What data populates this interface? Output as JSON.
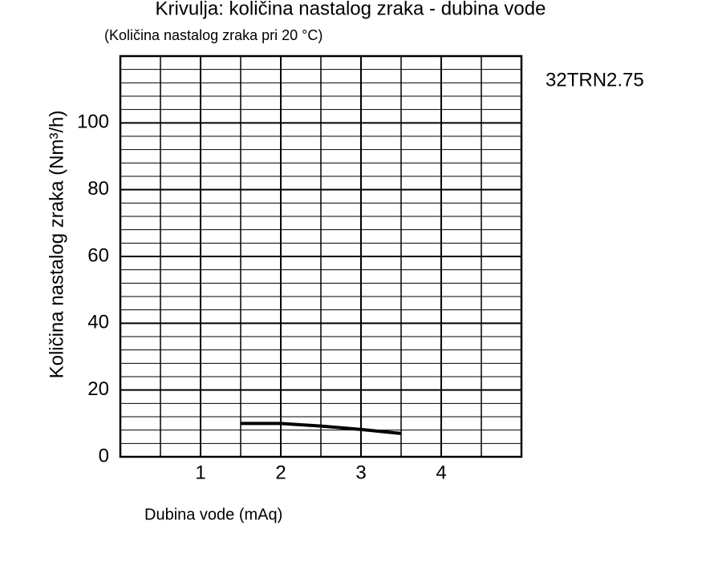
{
  "chart_data": {
    "type": "line",
    "title": "Krivulja: količina nastalog zraka - dubina vode",
    "subtitle": "(Količina nastalog zraka pri 20 °C)",
    "x_label": "Dubina vode (mAq)",
    "y_label": "Količina nastalog zraka (Nm³/h)",
    "annotation": "32TRN2.75",
    "x": [
      1.5,
      2,
      2.5,
      3,
      3.5
    ],
    "values": [
      10,
      10,
      9.2,
      8.2,
      7
    ],
    "color": "#000000",
    "xlim": [
      0,
      5
    ],
    "xticks": [
      1,
      2,
      3,
      4
    ],
    "ylim": [
      0,
      120
    ],
    "yticks": [
      0,
      20,
      40,
      60,
      80,
      100
    ],
    "grid": true
  }
}
